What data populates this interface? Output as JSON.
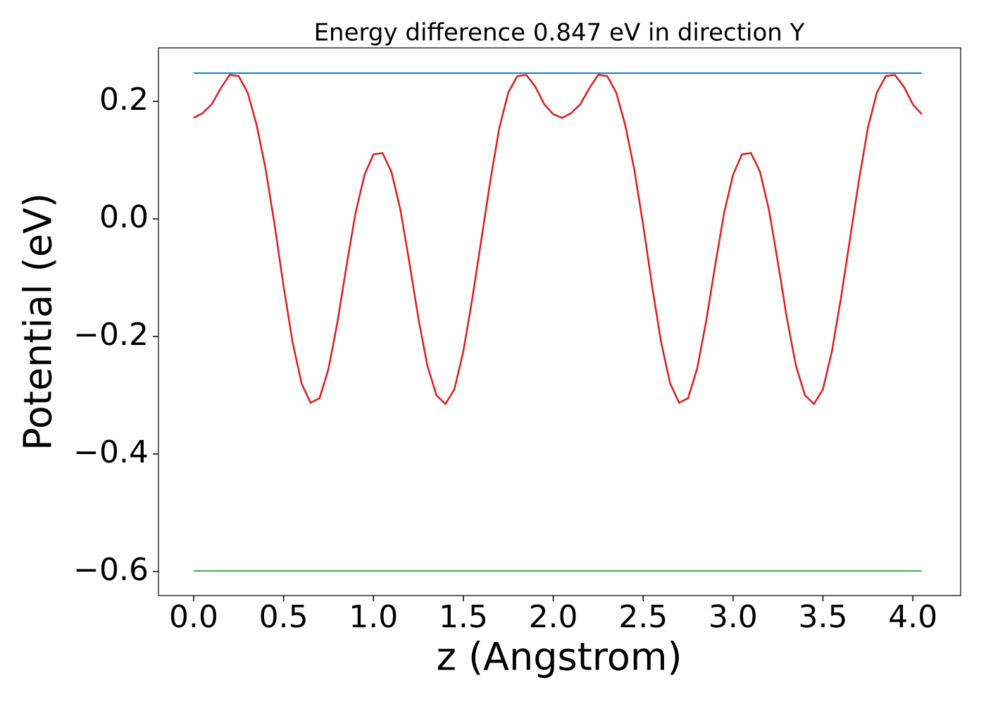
{
  "chart_data": {
    "type": "line",
    "title": "Energy difference 0.847 eV in direction Y",
    "xlabel": "z (Angstrom)",
    "ylabel": "Potential (eV)",
    "x": [
      0,
      0.05,
      0.1,
      0.15,
      0.2,
      0.25,
      0.3,
      0.35,
      0.4,
      0.45,
      0.5,
      0.55,
      0.6,
      0.65,
      0.7,
      0.75,
      0.8,
      0.85,
      0.9,
      0.95,
      1.0,
      1.05,
      1.1,
      1.15,
      1.2,
      1.25,
      1.3,
      1.35,
      1.4,
      1.45,
      1.5,
      1.55,
      1.6,
      1.65,
      1.7,
      1.75,
      1.8,
      1.85,
      1.9,
      1.95,
      2.0,
      2.05,
      2.1,
      2.15,
      2.2,
      2.25,
      2.3,
      2.35,
      2.4,
      2.45,
      2.5,
      2.55,
      2.6,
      2.65,
      2.7,
      2.75,
      2.8,
      2.85,
      2.9,
      2.95,
      3.0,
      3.05,
      3.1,
      3.15,
      3.2,
      3.25,
      3.3,
      3.35,
      3.4,
      3.45,
      3.5,
      3.55,
      3.6,
      3.65,
      3.7,
      3.75,
      3.8,
      3.85,
      3.9,
      3.95,
      4.0,
      4.05
    ],
    "series": [
      {
        "color": "#e31a1c",
        "values": [
          0.172,
          0.18,
          0.195,
          0.222,
          0.245,
          0.243,
          0.215,
          0.16,
          0.085,
          -0.01,
          -0.115,
          -0.21,
          -0.28,
          -0.313,
          -0.305,
          -0.255,
          -0.175,
          -0.08,
          0.01,
          0.075,
          0.11,
          0.112,
          0.08,
          0.015,
          -0.075,
          -0.17,
          -0.25,
          -0.3,
          -0.315,
          -0.29,
          -0.225,
          -0.135,
          -0.035,
          0.065,
          0.155,
          0.215,
          0.243,
          0.245,
          0.225,
          0.195,
          0.178,
          0.172,
          0.18,
          0.195,
          0.222,
          0.245,
          0.243,
          0.215,
          0.16,
          0.085,
          -0.01,
          -0.115,
          -0.21,
          -0.28,
          -0.313,
          -0.305,
          -0.255,
          -0.175,
          -0.08,
          0.01,
          0.075,
          0.11,
          0.112,
          0.08,
          0.015,
          -0.075,
          -0.17,
          -0.25,
          -0.3,
          -0.315,
          -0.29,
          -0.225,
          -0.135,
          -0.035,
          0.065,
          0.155,
          0.215,
          0.243,
          0.245,
          0.225,
          0.195,
          0.178
        ]
      }
    ],
    "hlines": [
      {
        "value": 0.248,
        "color": "#1f77b4"
      },
      {
        "value": -0.599,
        "color": "#4daf4a"
      }
    ],
    "xlim": [
      -0.196,
      4.266
    ],
    "ylim": [
      -0.641,
      0.291
    ],
    "xticks": [
      {
        "value": 0,
        "label": "0.0"
      },
      0.5,
      {
        "value": 1,
        "label": "1.0"
      },
      1.5,
      {
        "value": 2,
        "label": "2.0"
      },
      2.5,
      {
        "value": 3,
        "label": "3.0"
      },
      3.5,
      {
        "value": 4,
        "label": "4.0"
      }
    ],
    "yticks": [
      {
        "value": -0.6,
        "label": "−0.6"
      },
      {
        "value": -0.4,
        "label": "−0.4"
      },
      {
        "value": -0.2,
        "label": "−0.2"
      },
      {
        "value": 0,
        "label": "0.0"
      },
      0.2
    ]
  }
}
